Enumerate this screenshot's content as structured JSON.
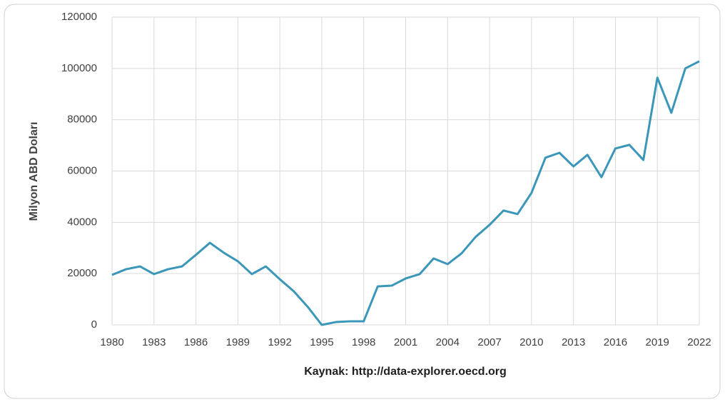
{
  "chart_data": {
    "type": "line",
    "y_axis_label": "Milyon ABD Doları",
    "x_axis_label": "Kaynak: http://data-explorer.oecd.org",
    "x": [
      1980,
      1981,
      1982,
      1983,
      1984,
      1985,
      1986,
      1987,
      1988,
      1989,
      1990,
      1991,
      1992,
      1993,
      1994,
      1995,
      1996,
      1997,
      1998,
      1999,
      2000,
      2001,
      2002,
      2003,
      2004,
      2005,
      2006,
      2007,
      2008,
      2009,
      2010,
      2011,
      2012,
      2013,
      2014,
      2015,
      2016,
      2017,
      2018,
      2019,
      2020,
      2021,
      2022
    ],
    "series": [
      {
        "name": null,
        "color": "#3a97b9",
        "values": [
          19500,
          21700,
          22800,
          19800,
          21700,
          22800,
          27300,
          32000,
          28100,
          24800,
          19800,
          22800,
          17800,
          13100,
          7000,
          0,
          1100,
          1400,
          1400,
          15000,
          15300,
          18100,
          19800,
          25900,
          23700,
          27900,
          34300,
          39000,
          44600,
          43200,
          51500,
          65200,
          67100,
          61800,
          66300,
          57600,
          68800,
          70200,
          64300,
          96400,
          82700,
          100000,
          102800
        ]
      }
    ],
    "xlim": [
      1980,
      2022
    ],
    "xticks": [
      1980,
      1983,
      1986,
      1989,
      1992,
      1995,
      1998,
      2001,
      2004,
      2007,
      2010,
      2013,
      2016,
      2019,
      2022
    ],
    "ylim": [
      0,
      120000
    ],
    "yticks": [
      0,
      20000,
      40000,
      60000,
      80000,
      100000,
      120000
    ],
    "grid": true
  }
}
